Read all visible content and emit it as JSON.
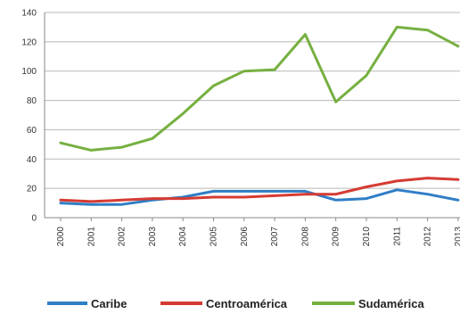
{
  "chart_data": {
    "type": "line",
    "title": "",
    "xlabel": "",
    "ylabel": "",
    "ylim": [
      0,
      140
    ],
    "yticks": [
      0,
      20,
      40,
      60,
      80,
      100,
      120,
      140
    ],
    "categories": [
      "2000",
      "2001",
      "2002",
      "2003",
      "2004",
      "2005",
      "2006",
      "2007",
      "2008",
      "2009",
      "2010",
      "2011",
      "2012",
      "2013"
    ],
    "grid": true,
    "legend_position": "bottom",
    "series": [
      {
        "name": "Caribe",
        "color": "#2f7ec6",
        "values": [
          10,
          9,
          9,
          12,
          14,
          18,
          18,
          18,
          18,
          12,
          13,
          19,
          16,
          12
        ]
      },
      {
        "name": "Centroamérica",
        "color": "#d63b33",
        "values": [
          12,
          11,
          12,
          13,
          13,
          14,
          14,
          15,
          16,
          16,
          21,
          25,
          27,
          26
        ]
      },
      {
        "name": "Sudamérica",
        "color": "#76b041",
        "values": [
          51,
          46,
          48,
          54,
          71,
          90,
          100,
          101,
          125,
          79,
          97,
          130,
          128,
          117
        ]
      }
    ]
  }
}
